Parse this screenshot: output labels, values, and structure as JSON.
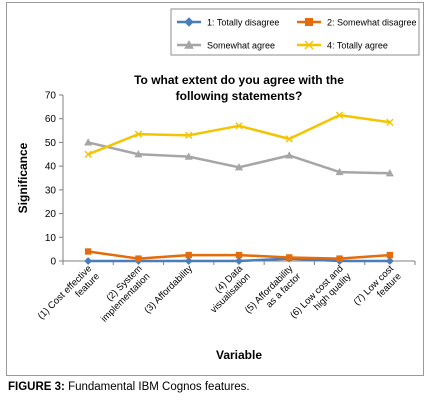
{
  "caption": {
    "label": "FIGURE 3:",
    "text": " Fundamental IBM Cognos features."
  },
  "chart_data": {
    "type": "line",
    "title": [
      "To what extent do you agree with the",
      "following statements?"
    ],
    "xlabel": "Variable",
    "ylabel": "Significance",
    "ylim": [
      0,
      70
    ],
    "yticks": [
      0,
      10,
      20,
      30,
      40,
      50,
      60,
      70
    ],
    "grid": false,
    "legend_position": "top",
    "categories": [
      [
        "(1) Cost effective",
        "feature"
      ],
      [
        "(2) System",
        "implementation"
      ],
      [
        "(3) Affordability"
      ],
      [
        "(4) Data",
        "visualisation"
      ],
      [
        "(5) Affordability",
        "as a factor"
      ],
      [
        "(6) Low cost and",
        "high quality"
      ],
      [
        "(7) Low cost",
        "feature"
      ]
    ],
    "series": [
      {
        "name": "1: Totally disagree",
        "color": "#4a7ebb",
        "marker": "diamond",
        "values": [
          0,
          0,
          0,
          0,
          1,
          0,
          0
        ]
      },
      {
        "name": "2: Somewhat disagree",
        "color": "#e46c0a",
        "marker": "square",
        "values": [
          4,
          1,
          2.5,
          2.5,
          1.5,
          1,
          2.5
        ]
      },
      {
        "name": "Somewhat agree",
        "color": "#a6a6a6",
        "marker": "triangle",
        "values": [
          50,
          45,
          44,
          39.5,
          44.5,
          37.5,
          37
        ]
      },
      {
        "name": "4: Totally agree",
        "color": "#f5c400",
        "marker": "x",
        "values": [
          45,
          53.5,
          53,
          57,
          51.5,
          61.5,
          58.5
        ]
      }
    ]
  }
}
